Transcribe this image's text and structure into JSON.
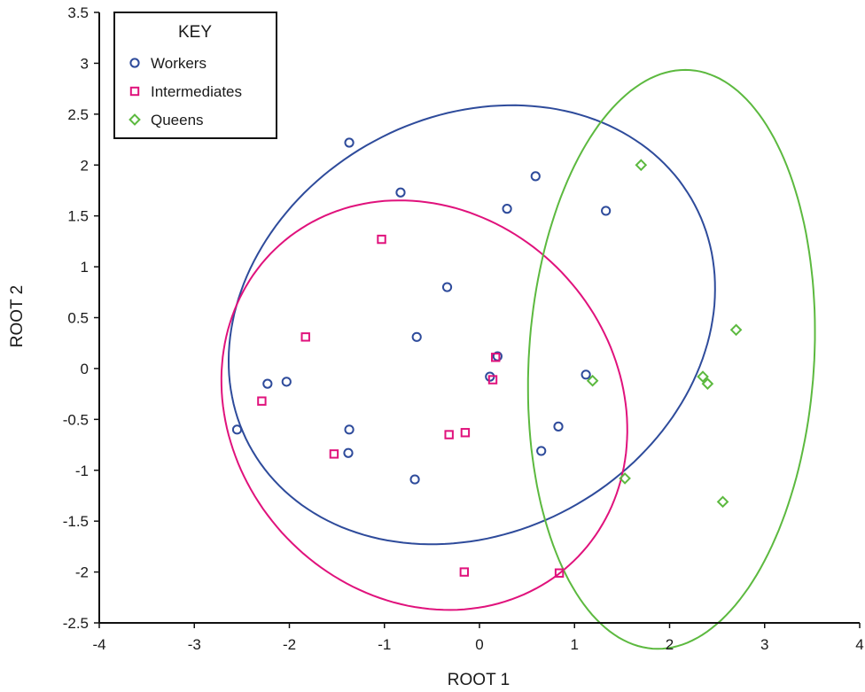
{
  "chart_data": {
    "type": "scatter",
    "xlabel": "ROOT 1",
    "ylabel": "ROOT 2",
    "xlim": [
      -4,
      4
    ],
    "ylim": [
      -2.5,
      3.5
    ],
    "xticks": [
      -4,
      -3,
      -2,
      -1,
      0,
      1,
      2,
      3,
      4
    ],
    "yticks": [
      -2.5,
      -2,
      -1.5,
      -1,
      -0.5,
      0,
      0.5,
      1,
      1.5,
      2,
      2.5,
      3,
      3.5
    ],
    "grid": false,
    "legend": {
      "title": "KEY",
      "position": "top-left"
    },
    "series": [
      {
        "name": "Workers",
        "marker": "circle",
        "color": "#2e4b9b",
        "points": [
          [
            -1.37,
            2.22
          ],
          [
            -0.83,
            1.73
          ],
          [
            0.59,
            1.89
          ],
          [
            0.29,
            1.57
          ],
          [
            1.33,
            1.55
          ],
          [
            -0.34,
            0.8
          ],
          [
            -0.66,
            0.31
          ],
          [
            0.19,
            0.12
          ],
          [
            0.11,
            -0.08
          ],
          [
            1.12,
            -0.06
          ],
          [
            -2.23,
            -0.15
          ],
          [
            -2.03,
            -0.13
          ],
          [
            -2.55,
            -0.6
          ],
          [
            -1.37,
            -0.6
          ],
          [
            -1.38,
            -0.83
          ],
          [
            0.83,
            -0.57
          ],
          [
            0.65,
            -0.81
          ],
          [
            -0.68,
            -1.09
          ]
        ],
        "ellipse": {
          "cx": -0.08,
          "cy": 0.43,
          "rx": 2.63,
          "ry": 2.07,
          "angle_deg": 22
        }
      },
      {
        "name": "Intermediates",
        "marker": "square",
        "color": "#e0127c",
        "points": [
          [
            -1.03,
            1.27
          ],
          [
            -1.83,
            0.31
          ],
          [
            0.17,
            0.11
          ],
          [
            0.14,
            -0.11
          ],
          [
            -2.29,
            -0.32
          ],
          [
            -0.32,
            -0.65
          ],
          [
            -0.15,
            -0.63
          ],
          [
            -1.53,
            -0.84
          ],
          [
            -0.16,
            -2.0
          ],
          [
            0.84,
            -2.01
          ]
        ],
        "ellipse": {
          "cx": -0.58,
          "cy": -0.36,
          "rx": 2.21,
          "ry": 1.93,
          "angle_deg": -32
        }
      },
      {
        "name": "Queens",
        "marker": "diamond",
        "color": "#5cb93f",
        "points": [
          [
            1.7,
            2.0
          ],
          [
            1.19,
            -0.12
          ],
          [
            2.35,
            -0.08
          ],
          [
            2.4,
            -0.15
          ],
          [
            2.7,
            0.38
          ],
          [
            1.53,
            -1.08
          ],
          [
            2.56,
            -1.31
          ]
        ],
        "ellipse": {
          "cx": 2.02,
          "cy": 0.09,
          "rx": 1.5,
          "ry": 2.85,
          "angle_deg": -4
        }
      }
    ]
  }
}
